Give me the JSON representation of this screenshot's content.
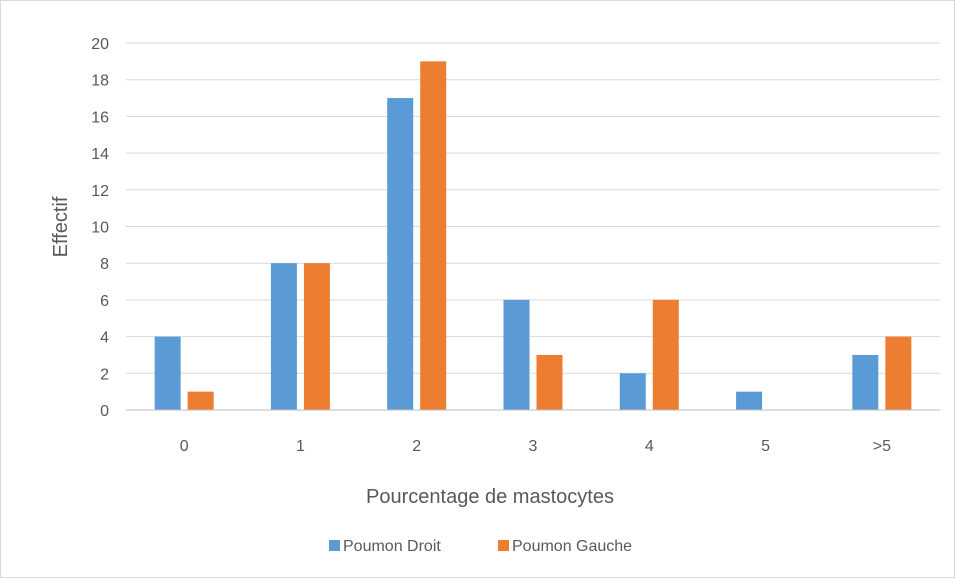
{
  "chart_data": {
    "type": "bar",
    "title": "",
    "xlabel": "Pourcentage de mastocytes",
    "ylabel": "Effectif",
    "categories": [
      "0",
      "1",
      "2",
      "3",
      "4",
      "5",
      ">5"
    ],
    "series": [
      {
        "name": "Poumon Droit",
        "values": [
          4,
          8,
          17,
          6,
          2,
          1,
          3
        ],
        "color": "#5B9BD5"
      },
      {
        "name": "Poumon Gauche",
        "values": [
          1,
          8,
          19,
          3,
          6,
          0,
          4
        ],
        "color": "#ED7D31"
      }
    ],
    "ylim": [
      0,
      20
    ],
    "yticks": [
      "0",
      "2",
      "4",
      "6",
      "8",
      "10",
      "12",
      "14",
      "16",
      "18",
      "20"
    ],
    "grid": true,
    "legend_position": "bottom"
  }
}
